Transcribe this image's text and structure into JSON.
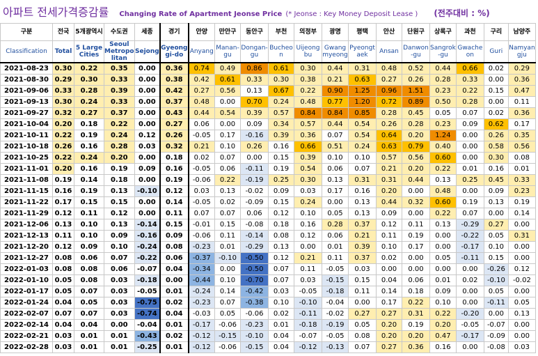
{
  "title": {
    "korean": "아파트 전세가격증감률",
    "english": "Changing Rate of Apartment Jeonse Price",
    "note": "(* Jeonse : Key Money Deposit Lease )",
    "unit": "(전주대비 : %)"
  },
  "header": {
    "classification_ko": "구분",
    "classification_en": "Classification",
    "columns": [
      {
        "ko": "전국",
        "en": "Total"
      },
      {
        "ko": "5개광역시",
        "en": "5 Large Cities"
      },
      {
        "ko": "수도권",
        "en": "Seoul Metropo litan"
      },
      {
        "ko": "세종",
        "en": "Sejong"
      },
      {
        "ko": "경기",
        "en": "Gyeong gi-do"
      },
      {
        "ko": "안양",
        "en": "Anyang"
      },
      {
        "ko": "만안구",
        "en": "Manan- gu"
      },
      {
        "ko": "동안구",
        "en": "Dongan- gu"
      },
      {
        "ko": "부천",
        "en": "Bucheo n"
      },
      {
        "ko": "의정부",
        "en": "Uijeong bu"
      },
      {
        "ko": "광명",
        "en": "Gwang myeong"
      },
      {
        "ko": "평택",
        "en": "Pyeongt aek"
      },
      {
        "ko": "안산",
        "en": "Ansan"
      },
      {
        "ko": "단원구",
        "en": "Danwon -gu"
      },
      {
        "ko": "상록구",
        "en": "Sangrok -gu"
      },
      {
        "ko": "과천",
        "en": "Gwache on"
      },
      {
        "ko": "구리",
        "en": "Guri"
      },
      {
        "ko": "남양주",
        "en": "Namyan gju"
      }
    ]
  },
  "rows": [
    {
      "date": "2021-08-23",
      "v": [
        "0.30",
        "0.22",
        "0.35",
        "0.00",
        "0.36",
        "0.74",
        "0.49",
        "0.86",
        "0.61",
        "0.30",
        "0.44",
        "0.31",
        "0.48",
        "0.52",
        "0.44",
        "0.66",
        "0.02",
        "0.29"
      ]
    },
    {
      "date": "2021-08-30",
      "v": [
        "0.29",
        "0.30",
        "0.33",
        "0.00",
        "0.38",
        "0.42",
        "0.61",
        "0.33",
        "0.30",
        "0.38",
        "0.21",
        "0.63",
        "0.27",
        "0.26",
        "0.28",
        "0.33",
        "0.00",
        "0.36"
      ]
    },
    {
      "date": "2021-09-06",
      "v": [
        "0.33",
        "0.28",
        "0.39",
        "0.00",
        "0.42",
        "0.27",
        "0.56",
        "0.13",
        "0.67",
        "0.22",
        "0.90",
        "1.25",
        "0.96",
        "1.51",
        "0.23",
        "0.22",
        "0.15",
        "0.47"
      ]
    },
    {
      "date": "2021-09-13",
      "v": [
        "0.30",
        "0.24",
        "0.33",
        "0.00",
        "0.37",
        "0.48",
        "0.00",
        "0.70",
        "0.24",
        "0.48",
        "0.77",
        "1.20",
        "0.72",
        "0.89",
        "0.50",
        "0.28",
        "0.00",
        "0.11"
      ]
    },
    {
      "date": "2021-09-27",
      "v": [
        "0.32",
        "0.27",
        "0.37",
        "0.00",
        "0.43",
        "0.44",
        "0.54",
        "0.39",
        "0.57",
        "0.84",
        "0.84",
        "0.85",
        "0.28",
        "0.45",
        "0.05",
        "0.07",
        "0.02",
        "0.36"
      ]
    },
    {
      "date": "2021-10-04",
      "v": [
        "0.20",
        "0.18",
        "0.22",
        "0.00",
        "0.27",
        "0.06",
        "0.00",
        "0.09",
        "0.34",
        "0.57",
        "0.44",
        "0.54",
        "0.26",
        "0.28",
        "0.23",
        "0.09",
        "0.62",
        "0.17"
      ]
    },
    {
      "date": "2021-10-11",
      "v": [
        "0.22",
        "0.19",
        "0.24",
        "0.12",
        "0.26",
        "-0.05",
        "0.17",
        "-0.16",
        "0.39",
        "0.36",
        "0.07",
        "0.54",
        "0.64",
        "0.20",
        "1.24",
        "0.00",
        "0.26",
        "0.35"
      ]
    },
    {
      "date": "2021-10-18",
      "v": [
        "0.26",
        "0.16",
        "0.28",
        "0.03",
        "0.32",
        "0.21",
        "0.10",
        "0.26",
        "0.16",
        "0.66",
        "0.51",
        "0.24",
        "0.63",
        "0.79",
        "0.40",
        "0.00",
        "0.58",
        "0.56"
      ]
    },
    {
      "date": "2021-10-25",
      "v": [
        "0.22",
        "0.24",
        "0.20",
        "0.00",
        "0.18",
        "0.02",
        "0.07",
        "0.00",
        "0.15",
        "0.39",
        "0.10",
        "0.10",
        "0.57",
        "0.56",
        "0.60",
        "0.00",
        "0.30",
        "0.08"
      ]
    },
    {
      "date": "2021-11-01",
      "v": [
        "0.20",
        "0.16",
        "0.19",
        "0.09",
        "0.16",
        "-0.05",
        "0.06",
        "-0.11",
        "0.19",
        "0.54",
        "0.06",
        "0.07",
        "0.21",
        "0.20",
        "0.22",
        "0.01",
        "0.16",
        "0.01"
      ]
    },
    {
      "date": "2021-11-08",
      "v": [
        "0.19",
        "0.14",
        "0.18",
        "0.00",
        "0.19",
        "-0.06",
        "0.22",
        "-0.19",
        "0.25",
        "0.30",
        "0.13",
        "0.31",
        "0.31",
        "0.44",
        "0.13",
        "0.25",
        "0.45",
        "0.33"
      ]
    },
    {
      "date": "2021-11-15",
      "v": [
        "0.16",
        "0.19",
        "0.13",
        "-0.10",
        "0.12",
        "0.03",
        "0.13",
        "-0.02",
        "0.09",
        "0.03",
        "0.17",
        "0.16",
        "0.20",
        "0.00",
        "0.48",
        "0.00",
        "0.09",
        "0.23"
      ]
    },
    {
      "date": "2021-11-22",
      "v": [
        "0.17",
        "0.15",
        "0.15",
        "0.00",
        "0.14",
        "-0.05",
        "0.02",
        "-0.09",
        "0.15",
        "0.24",
        "0.00",
        "0.13",
        "0.44",
        "0.32",
        "0.60",
        "0.19",
        "0.13",
        "0.19"
      ]
    },
    {
      "date": "2021-11-29",
      "v": [
        "0.12",
        "0.11",
        "0.12",
        "0.00",
        "0.11",
        "0.07",
        "0.07",
        "0.06",
        "0.12",
        "0.10",
        "0.05",
        "0.13",
        "0.09",
        "0.00",
        "0.22",
        "0.07",
        "0.00",
        "0.14"
      ]
    },
    {
      "date": "2021-12-06",
      "v": [
        "0.13",
        "0.10",
        "0.13",
        "-0.14",
        "0.15",
        "-0.01",
        "0.15",
        "-0.08",
        "0.18",
        "0.16",
        "0.28",
        "0.37",
        "0.12",
        "0.11",
        "0.13",
        "-0.29",
        "0.27",
        "0.00"
      ]
    },
    {
      "date": "2021-12-13",
      "v": [
        "0.11",
        "0.10",
        "0.09",
        "-0.16",
        "0.09",
        "-0.06",
        "0.11",
        "-0.14",
        "0.08",
        "0.12",
        "0.06",
        "0.21",
        "0.11",
        "0.19",
        "0.00",
        "-0.22",
        "0.05",
        "0.31"
      ]
    },
    {
      "date": "2021-12-20",
      "v": [
        "0.12",
        "0.09",
        "0.10",
        "-0.24",
        "0.08",
        "-0.23",
        "0.01",
        "-0.29",
        "0.13",
        "0.00",
        "0.01",
        "0.39",
        "0.10",
        "0.17",
        "0.00",
        "-0.17",
        "0.10",
        "0.00"
      ]
    },
    {
      "date": "2021-12-27",
      "v": [
        "0.08",
        "0.06",
        "0.07",
        "-0.22",
        "0.06",
        "-0.37",
        "-0.10",
        "-0.50",
        "0.12",
        "0.21",
        "0.11",
        "0.37",
        "0.02",
        "0.00",
        "0.05",
        "-0.11",
        "0.15",
        "0.00"
      ]
    },
    {
      "date": "2022-01-03",
      "v": [
        "0.08",
        "0.08",
        "0.06",
        "-0.07",
        "0.04",
        "-0.34",
        "0.00",
        "-0.50",
        "0.07",
        "0.11",
        "-0.05",
        "0.03",
        "0.00",
        "0.00",
        "0.00",
        "0.00",
        "-0.26",
        "0.12"
      ]
    },
    {
      "date": "2022-01-10",
      "v": [
        "0.05",
        "0.08",
        "0.03",
        "-0.18",
        "0.00",
        "-0.44",
        "0.10",
        "-0.70",
        "0.07",
        "0.03",
        "-0.15",
        "0.15",
        "0.04",
        "0.06",
        "0.01",
        "0.02",
        "-0.10",
        "-0.02"
      ]
    },
    {
      "date": "2022-01-17",
      "v": [
        "0.05",
        "0.07",
        "0.03",
        "-0.05",
        "0.01",
        "-0.24",
        "0.14",
        "-0.42",
        "0.03",
        "-0.05",
        "-0.18",
        "0.11",
        "0.14",
        "0.18",
        "0.09",
        "0.00",
        "0.05",
        "0.00"
      ]
    },
    {
      "date": "2022-01-24",
      "v": [
        "0.04",
        "0.05",
        "0.03",
        "-0.75",
        "0.02",
        "-0.23",
        "0.07",
        "-0.38",
        "0.10",
        "-0.10",
        "-0.04",
        "0.00",
        "0.17",
        "0.22",
        "0.10",
        "0.00",
        "-0.11",
        "0.05"
      ]
    },
    {
      "date": "2022-02-07",
      "v": [
        "0.07",
        "0.07",
        "0.03",
        "-0.74",
        "0.04",
        "-0.03",
        "0.05",
        "-0.06",
        "0.02",
        "-0.11",
        "-0.02",
        "0.27",
        "0.27",
        "0.31",
        "0.22",
        "-0.20",
        "0.00",
        "0.13"
      ]
    },
    {
      "date": "2022-02-14",
      "v": [
        "0.04",
        "0.04",
        "0.00",
        "-0.04",
        "0.01",
        "-0.17",
        "-0.06",
        "-0.23",
        "0.01",
        "-0.18",
        "-0.19",
        "0.05",
        "0.20",
        "0.19",
        "0.20",
        "-0.05",
        "-0.07",
        "0.00"
      ]
    },
    {
      "date": "2022-02-21",
      "v": [
        "0.03",
        "0.01",
        "0.01",
        "-0.43",
        "0.02",
        "-0.12",
        "-0.15",
        "-0.10",
        "0.04",
        "-0.07",
        "-0.05",
        "0.08",
        "0.20",
        "0.20",
        "0.47",
        "-0.17",
        "-0.09",
        "0.00"
      ]
    },
    {
      "date": "2022-02-28",
      "v": [
        "0.03",
        "0.01",
        "0.01",
        "-0.25",
        "0.01",
        "-0.12",
        "-0.06",
        "-0.15",
        "0.04",
        "-0.12",
        "-0.13",
        "0.07",
        "0.27",
        "0.36",
        "0.16",
        "0.00",
        "-0.08",
        "0.03"
      ]
    }
  ],
  "colors": {
    "title": "#7030a0",
    "header_en": "#1f4e9e",
    "positive_light": "#ffeeb0",
    "positive_mid": "#ffc000",
    "positive_strong": "#f08c00",
    "negative_light": "#dce6f4",
    "negative_mid": "#8db4e2",
    "negative_strong": "#4472c4"
  }
}
